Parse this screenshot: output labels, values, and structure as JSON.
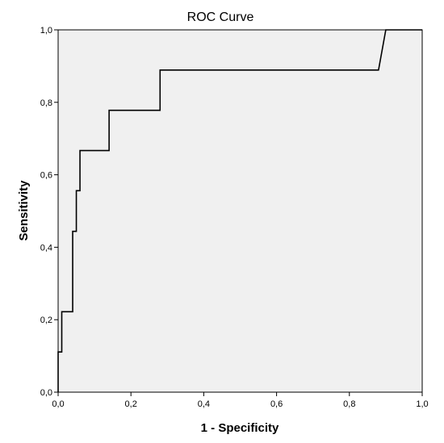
{
  "chart_data": {
    "type": "line",
    "title": "ROC Curve",
    "xlabel": "1 - Specificity",
    "ylabel": "Sensitivity",
    "xlim": [
      0,
      1
    ],
    "ylim": [
      0,
      1
    ],
    "x_ticks": [
      "0,0",
      "0,2",
      "0,4",
      "0,6",
      "0,8",
      "1,0"
    ],
    "y_ticks": [
      "0,0",
      "0,2",
      "0,4",
      "0,6",
      "0,8",
      "1,0"
    ],
    "tick_values": [
      0,
      0.2,
      0.4,
      0.6,
      0.8,
      1.0
    ],
    "grid": false,
    "colors": {
      "plot_background": "#f0f0f0",
      "line": "#000000",
      "frame": "#000000"
    },
    "series": [
      {
        "x": [
          0,
          0,
          0.01,
          0.01,
          0.04,
          0.04,
          0.05,
          0.05,
          0.06,
          0.06,
          0.14,
          0.14,
          0.28,
          0.28,
          0.88,
          0.9,
          1.0
        ],
        "y": [
          0,
          0.111,
          0.111,
          0.222,
          0.222,
          0.444,
          0.444,
          0.556,
          0.556,
          0.667,
          0.667,
          0.778,
          0.778,
          0.889,
          0.889,
          1.0,
          1.0
        ]
      }
    ]
  }
}
